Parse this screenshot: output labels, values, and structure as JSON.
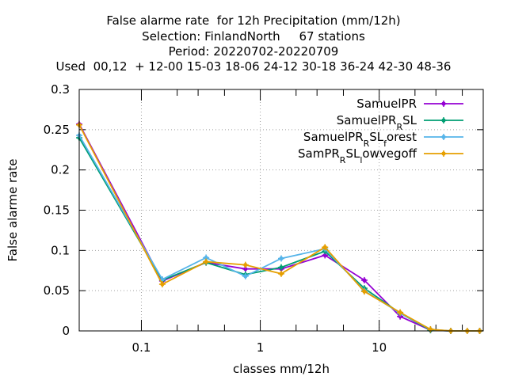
{
  "chart_data": {
    "type": "line",
    "title_lines": [
      "False alarme rate  for 12h Precipitation (mm/12h)",
      "Selection: FinlandNorth     67 stations",
      "Period: 20220702-20220709",
      "Used  00,12  + 12-00 15-03 18-06 24-12 30-18 36-24 42-30 48-36"
    ],
    "xlabel": "classes mm/12h",
    "ylabel": "False alarme rate",
    "x_scale": "log",
    "xlim": [
      0.03,
      75
    ],
    "ylim": [
      0,
      0.3
    ],
    "x_ticks": [
      {
        "value": 0.1,
        "label": "0.1"
      },
      {
        "value": 1,
        "label": "1"
      },
      {
        "value": 10,
        "label": "10"
      }
    ],
    "y_ticks": [
      {
        "value": 0,
        "label": "0"
      },
      {
        "value": 0.05,
        "label": "0.05"
      },
      {
        "value": 0.1,
        "label": "0.1"
      },
      {
        "value": 0.15,
        "label": "0.15"
      },
      {
        "value": 0.2,
        "label": "0.2"
      },
      {
        "value": 0.25,
        "label": "0.25"
      },
      {
        "value": 0.3,
        "label": "0.3"
      }
    ],
    "x_minor_ticks": [
      0.2,
      0.3,
      0.5,
      2,
      3,
      5,
      20,
      30,
      50
    ],
    "grid": true,
    "legend_position": "top-right",
    "series": [
      {
        "name": "SamuelPR",
        "color": "#9400d3",
        "x": [
          0.03,
          0.15,
          0.35,
          0.75,
          1.5,
          3.5,
          7.5,
          15,
          27,
          40,
          55,
          70
        ],
        "y": [
          0.257,
          0.062,
          0.085,
          0.077,
          0.077,
          0.094,
          0.063,
          0.018,
          0.001,
          0.0,
          0.0,
          0.0
        ]
      },
      {
        "name_parts": [
          "SamuelPR",
          "R",
          "SL"
        ],
        "color": "#009e73",
        "x": [
          0.03,
          0.15,
          0.35,
          0.75,
          1.5,
          3.5,
          7.5,
          15,
          27,
          40,
          55,
          70
        ],
        "y": [
          0.24,
          0.063,
          0.085,
          0.07,
          0.079,
          0.099,
          0.053,
          0.022,
          0.001,
          0.0,
          0.0,
          0.0
        ]
      },
      {
        "name_parts": [
          "SamuelPR",
          "R",
          "SL",
          "f",
          "orest"
        ],
        "color": "#56b4e9",
        "x": [
          0.03,
          0.15,
          0.35,
          0.75,
          1.5,
          3.5,
          7.5,
          15,
          27,
          40,
          55,
          70
        ],
        "y": [
          0.243,
          0.064,
          0.091,
          0.068,
          0.09,
          0.102,
          0.05,
          0.022,
          0.002,
          0.0,
          0.0,
          0.0
        ]
      },
      {
        "name_parts": [
          "SamPR",
          "R",
          "SL",
          "l",
          "owvegoff"
        ],
        "color": "#e69f00",
        "x": [
          0.03,
          0.15,
          0.35,
          0.75,
          1.5,
          3.5,
          7.5,
          15,
          27,
          40,
          55,
          70
        ],
        "y": [
          0.256,
          0.058,
          0.086,
          0.082,
          0.071,
          0.104,
          0.049,
          0.023,
          0.002,
          0.0,
          0.0,
          0.0
        ]
      }
    ]
  }
}
